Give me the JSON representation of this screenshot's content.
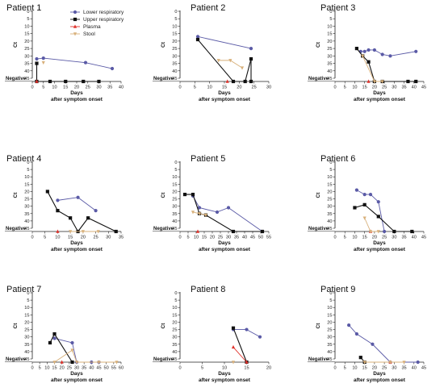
{
  "legend": {
    "items": [
      {
        "label": "Lower respiratory",
        "color": "#5a5aa6",
        "marker": "circle"
      },
      {
        "label": "Upper respiratory",
        "color": "#111111",
        "marker": "square"
      },
      {
        "label": "Plasma",
        "color": "#e0312a",
        "marker": "triangle"
      },
      {
        "label": "Stool",
        "color": "#d8b07a",
        "marker": "triangle-down"
      }
    ]
  },
  "chart_data": [
    {
      "type": "line",
      "title": "Patient 1",
      "xlabel": "Days",
      "xlabel2": "after symptom onset",
      "ylabel": "Ct",
      "negative_label": "Negative",
      "xlim": [
        0,
        40
      ],
      "xticks": [
        0,
        5,
        10,
        15,
        20,
        25,
        30,
        35,
        40
      ],
      "ylim": [
        0,
        45
      ],
      "yticks": [
        0,
        5,
        10,
        15,
        20,
        25,
        30,
        35,
        40,
        45
      ],
      "series": [
        {
          "name": "Lower respiratory",
          "points": [
            [
              2,
              32
            ],
            [
              5,
              31.5
            ],
            [
              24,
              34.5
            ],
            [
              36,
              38.5
            ]
          ]
        },
        {
          "name": "Upper respiratory",
          "points": [
            [
              2,
              35
            ],
            [
              2,
              "neg"
            ],
            [
              8,
              "neg"
            ],
            [
              15,
              "neg"
            ],
            [
              23,
              "neg"
            ],
            [
              30,
              "neg"
            ]
          ]
        },
        {
          "name": "Plasma",
          "points": [
            [
              2,
              "neg"
            ]
          ]
        },
        {
          "name": "Stool",
          "points": [
            [
              5,
              34.5
            ]
          ]
        }
      ]
    },
    {
      "type": "line",
      "title": "Patient 2",
      "xlabel": "Days",
      "xlabel2": "after symptom onset",
      "ylabel": "Ct",
      "negative_label": "Negative",
      "xlim": [
        0,
        30
      ],
      "xticks": [
        0,
        5,
        10,
        15,
        20,
        25,
        30
      ],
      "ylim": [
        0,
        45
      ],
      "yticks": [
        0,
        5,
        10,
        15,
        20,
        25,
        30,
        35,
        40,
        45
      ],
      "series": [
        {
          "name": "Lower respiratory",
          "points": [
            [
              6,
              17
            ],
            [
              24,
              25
            ]
          ]
        },
        {
          "name": "Upper respiratory",
          "points": [
            [
              6,
              19
            ],
            [
              18,
              "neg"
            ],
            [
              22,
              "neg"
            ],
            [
              24,
              32
            ],
            [
              24,
              "neg"
            ]
          ]
        },
        {
          "name": "Plasma",
          "points": [
            [
              16,
              "neg"
            ]
          ]
        },
        {
          "name": "Stool",
          "points": [
            [
              13,
              33
            ],
            [
              17,
              33
            ],
            [
              21,
              38
            ]
          ]
        }
      ]
    },
    {
      "type": "line",
      "title": "Patient 3",
      "xlabel": "Days",
      "xlabel2": "after symptom onset",
      "ylabel": "Ct",
      "negative_label": "Negative",
      "xlim": [
        0,
        45
      ],
      "xticks": [
        0,
        5,
        10,
        15,
        20,
        25,
        30,
        35,
        40,
        45
      ],
      "ylim": [
        0,
        45
      ],
      "yticks": [
        0,
        5,
        10,
        15,
        20,
        25,
        30,
        35,
        40,
        45
      ],
      "series": [
        {
          "name": "Lower respiratory",
          "points": [
            [
              13,
              27
            ],
            [
              15,
              27
            ],
            [
              17,
              26
            ],
            [
              20,
              26
            ],
            [
              24,
              29
            ],
            [
              28,
              30
            ],
            [
              41,
              27
            ]
          ]
        },
        {
          "name": "Upper respiratory",
          "points": [
            [
              11,
              25
            ],
            [
              14,
              30
            ],
            [
              17,
              34
            ],
            [
              20,
              "neg"
            ],
            [
              24,
              "neg"
            ],
            [
              37,
              "neg"
            ],
            [
              41,
              "neg"
            ]
          ]
        },
        {
          "name": "Plasma",
          "points": [
            [
              17,
              "neg"
            ]
          ]
        },
        {
          "name": "Stool",
          "points": [
            [
              14,
              30
            ],
            [
              20,
              "neg"
            ],
            [
              24,
              "neg"
            ]
          ]
        }
      ]
    },
    {
      "type": "line",
      "title": "Patient 4",
      "xlabel": "Days",
      "xlabel2": "after symptom onset",
      "ylabel": "Ct",
      "negative_label": "Negative",
      "xlim": [
        0,
        35
      ],
      "xticks": [
        0,
        5,
        10,
        15,
        20,
        25,
        30,
        35
      ],
      "ylim": [
        0,
        45
      ],
      "yticks": [
        0,
        5,
        10,
        15,
        20,
        25,
        30,
        35,
        40,
        45
      ],
      "series": [
        {
          "name": "Lower respiratory",
          "points": [
            [
              10,
              26
            ],
            [
              18,
              24
            ],
            [
              25,
              33
            ]
          ]
        },
        {
          "name": "Upper respiratory",
          "points": [
            [
              6,
              20
            ],
            [
              10,
              33
            ],
            [
              15,
              38
            ],
            [
              18,
              "neg"
            ],
            [
              22,
              38
            ],
            [
              33,
              "neg"
            ]
          ]
        },
        {
          "name": "Plasma",
          "points": [
            [
              10,
              "neg"
            ]
          ]
        },
        {
          "name": "Stool",
          "points": [
            [
              15,
              "neg"
            ],
            [
              20,
              "neg"
            ],
            [
              26,
              "neg"
            ]
          ]
        }
      ]
    },
    {
      "type": "line",
      "title": "Patient 5",
      "xlabel": "Days",
      "xlabel2": "after symptom onset",
      "ylabel": "Ct",
      "negative_label": "Negative",
      "xlim": [
        0,
        55
      ],
      "xticks": [
        0,
        5,
        10,
        15,
        20,
        25,
        30,
        35,
        40,
        45,
        50,
        55
      ],
      "ylim": [
        0,
        45
      ],
      "yticks": [
        0,
        5,
        10,
        15,
        20,
        25,
        30,
        35,
        40,
        45
      ],
      "series": [
        {
          "name": "Lower respiratory",
          "points": [
            [
              8,
              23
            ],
            [
              12,
              31
            ],
            [
              23,
              34
            ],
            [
              30,
              31
            ],
            [
              51,
              "neg"
            ]
          ]
        },
        {
          "name": "Upper respiratory",
          "points": [
            [
              3,
              22
            ],
            [
              8,
              22
            ],
            [
              12,
              35
            ],
            [
              16,
              36
            ],
            [
              33,
              "neg"
            ],
            [
              51,
              "neg"
            ]
          ]
        },
        {
          "name": "Plasma",
          "points": [
            [
              11,
              "neg"
            ]
          ]
        },
        {
          "name": "Stool",
          "points": [
            [
              8,
              34
            ],
            [
              12,
              35
            ],
            [
              16,
              36
            ]
          ]
        }
      ]
    },
    {
      "type": "line",
      "title": "Patient 6",
      "xlabel": "Days",
      "xlabel2": "after symptom onset",
      "ylabel": "Ct",
      "negative_label": "Negative",
      "xlim": [
        0,
        45
      ],
      "xticks": [
        0,
        5,
        10,
        15,
        20,
        25,
        30,
        35,
        40,
        45
      ],
      "ylim": [
        0,
        45
      ],
      "yticks": [
        0,
        5,
        10,
        15,
        20,
        25,
        30,
        35,
        40,
        45
      ],
      "series": [
        {
          "name": "Lower respiratory",
          "points": [
            [
              11,
              19
            ],
            [
              15,
              22
            ],
            [
              18,
              22
            ],
            [
              22,
              27
            ],
            [
              25,
              "neg"
            ]
          ]
        },
        {
          "name": "Upper respiratory",
          "points": [
            [
              10,
              31
            ],
            [
              15,
              29
            ],
            [
              22,
              37
            ],
            [
              30,
              "neg"
            ],
            [
              39,
              "neg"
            ]
          ]
        },
        {
          "name": "Plasma",
          "points": [
            [
              18,
              "neg"
            ]
          ]
        },
        {
          "name": "Stool",
          "points": [
            [
              15,
              38
            ],
            [
              18,
              "neg"
            ],
            [
              22,
              "neg"
            ]
          ]
        }
      ]
    },
    {
      "type": "line",
      "title": "Patient 7",
      "xlabel": "Days",
      "xlabel2": "after symptom onset",
      "ylabel": "Ct",
      "negative_label": "Negative",
      "xlim": [
        0,
        60
      ],
      "xticks": [
        0,
        5,
        10,
        15,
        20,
        25,
        30,
        35,
        40,
        45,
        50,
        55,
        60
      ],
      "ylim": [
        0,
        45
      ],
      "yticks": [
        0,
        5,
        10,
        15,
        20,
        25,
        30,
        35,
        40,
        45
      ],
      "series": [
        {
          "name": "Lower respiratory",
          "points": [
            [
              15,
              31
            ],
            [
              27,
              34
            ],
            [
              30,
              "neg"
            ],
            [
              40,
              "neg"
            ],
            [
              45,
              "neg"
            ]
          ]
        },
        {
          "name": "Upper respiratory",
          "points": [
            [
              12,
              34
            ],
            [
              15,
              28
            ],
            [
              27,
              "neg"
            ]
          ]
        },
        {
          "name": "Plasma",
          "points": [
            [
              20,
              "neg"
            ]
          ]
        },
        {
          "name": "Stool",
          "points": [
            [
              15,
              "neg"
            ],
            [
              27,
              39
            ],
            [
              30,
              "neg"
            ],
            [
              45,
              "neg"
            ],
            [
              57,
              "neg"
            ]
          ]
        }
      ]
    },
    {
      "type": "line",
      "title": "Patient 8",
      "xlabel": "Days",
      "xlabel2": "after symptom onset",
      "ylabel": "Ct",
      "negative_label": "Negative",
      "xlim": [
        0,
        20
      ],
      "xticks": [
        0,
        5,
        10,
        15,
        20
      ],
      "ylim": [
        0,
        45
      ],
      "yticks": [
        0,
        5,
        10,
        15,
        20,
        25,
        30,
        35,
        40,
        45
      ],
      "series": [
        {
          "name": "Lower respiratory",
          "points": [
            [
              12,
              25
            ],
            [
              15,
              25
            ],
            [
              18,
              30
            ]
          ]
        },
        {
          "name": "Upper respiratory",
          "points": [
            [
              12,
              24
            ],
            [
              15,
              "neg"
            ]
          ]
        },
        {
          "name": "Plasma",
          "points": [
            [
              12,
              37
            ],
            [
              15,
              "neg"
            ]
          ]
        },
        {
          "name": "Stool",
          "points": [
            [
              12,
              "neg"
            ]
          ]
        }
      ]
    },
    {
      "type": "line",
      "title": "Patient 9",
      "xlabel": "Days",
      "xlabel2": "after symptom onset",
      "ylabel": "Ct",
      "negative_label": "Negative",
      "xlim": [
        0,
        45
      ],
      "xticks": [
        0,
        5,
        10,
        15,
        20,
        25,
        30,
        35,
        40,
        45
      ],
      "ylim": [
        0,
        45
      ],
      "yticks": [
        0,
        5,
        10,
        15,
        20,
        25,
        30,
        35,
        40,
        45
      ],
      "series": [
        {
          "name": "Lower respiratory",
          "points": [
            [
              7,
              22
            ],
            [
              11,
              28
            ],
            [
              19,
              35
            ],
            [
              28,
              "neg"
            ],
            [
              42,
              "neg"
            ]
          ]
        },
        {
          "name": "Upper respiratory",
          "points": [
            [
              13,
              44
            ],
            [
              15,
              "neg"
            ]
          ]
        },
        {
          "name": "Plasma",
          "points": [
            [
              28,
              "neg"
            ]
          ]
        },
        {
          "name": "Stool",
          "points": [
            [
              15,
              "neg"
            ],
            [
              28,
              "neg"
            ],
            [
              35,
              "neg"
            ]
          ]
        }
      ]
    }
  ]
}
